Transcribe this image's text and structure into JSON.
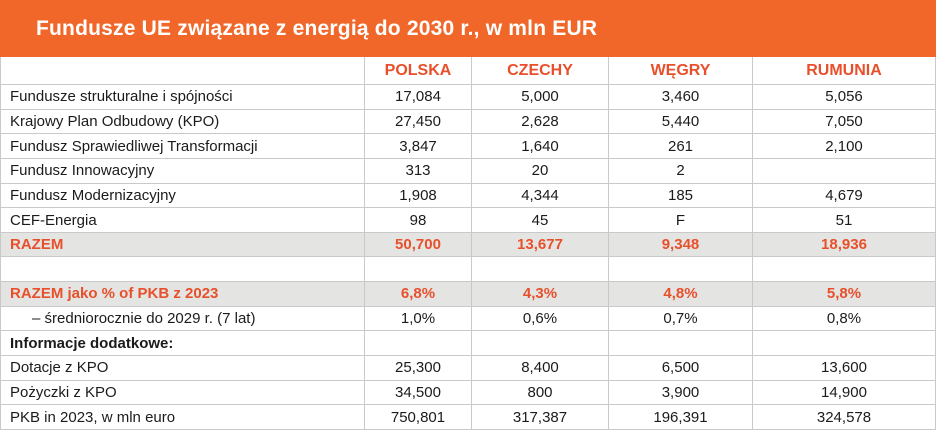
{
  "title": "Fundusze UE związane z energią do 2030 r., w mln EUR",
  "colors": {
    "banner_orange": "#F1672A",
    "accent_orange": "#E8502B",
    "highlight_row_bg": "#E4E4E3",
    "gridline": "#C9C9C9",
    "text": "#1B1B1B"
  },
  "chart_data": {
    "type": "table",
    "title": "Fundusze UE związane z energią do 2030 r., w mln EUR",
    "unit": "mln EUR",
    "columns": [
      "",
      "POLSKA",
      "CZECHY",
      "WĘGRY",
      "RUMUNIA"
    ],
    "rows": [
      {
        "label": "Fundusze strukturalne i spójności",
        "values": [
          "17,084",
          "5,000",
          "3,460",
          "5,056"
        ],
        "variant": "normal"
      },
      {
        "label": "Krajowy Plan Odbudowy (KPO)",
        "values": [
          "27,450",
          "2,628",
          "5,440",
          "7,050"
        ],
        "variant": "normal"
      },
      {
        "label": "Fundusz Sprawiedliwej Transformacji",
        "values": [
          "3,847",
          "1,640",
          "261",
          "2,100"
        ],
        "variant": "normal"
      },
      {
        "label": "Fundusz Innowacyjny",
        "values": [
          "313",
          "20",
          "2",
          ""
        ],
        "variant": "normal"
      },
      {
        "label": "Fundusz Modernizacyjny",
        "values": [
          "1,908",
          "4,344",
          "185",
          "4,679"
        ],
        "variant": "normal"
      },
      {
        "label": "CEF-Energia",
        "values": [
          "98",
          "45",
          "F",
          "51"
        ],
        "variant": "normal"
      },
      {
        "label": "RAZEM",
        "values": [
          "50,700",
          "13,677",
          "9,348",
          "18,936"
        ],
        "variant": "total"
      },
      {
        "label": "",
        "values": [
          "",
          "",
          "",
          ""
        ],
        "variant": "spacer"
      },
      {
        "label": "RAZEM jako % of PKB z 2023",
        "values": [
          "6,8%",
          "4,3%",
          "4,8%",
          "5,8%"
        ],
        "variant": "total"
      },
      {
        "label": "– średniorocznie do 2029 r. (7 lat)",
        "values": [
          "1,0%",
          "0,6%",
          "0,7%",
          "0,8%"
        ],
        "variant": "indent"
      },
      {
        "label": "Informacje dodatkowe:",
        "values": [
          "",
          "",
          "",
          ""
        ],
        "variant": "section"
      },
      {
        "label": "Dotacje z KPO",
        "values": [
          "25,300",
          "8,400",
          "6,500",
          "13,600"
        ],
        "variant": "normal"
      },
      {
        "label": "Pożyczki z KPO",
        "values": [
          "34,500",
          "800",
          "3,900",
          "14,900"
        ],
        "variant": "normal"
      },
      {
        "label": "PKB in 2023, w mln euro",
        "values": [
          "750,801",
          "317,387",
          "196,391",
          "324,578"
        ],
        "variant": "normal"
      }
    ]
  }
}
